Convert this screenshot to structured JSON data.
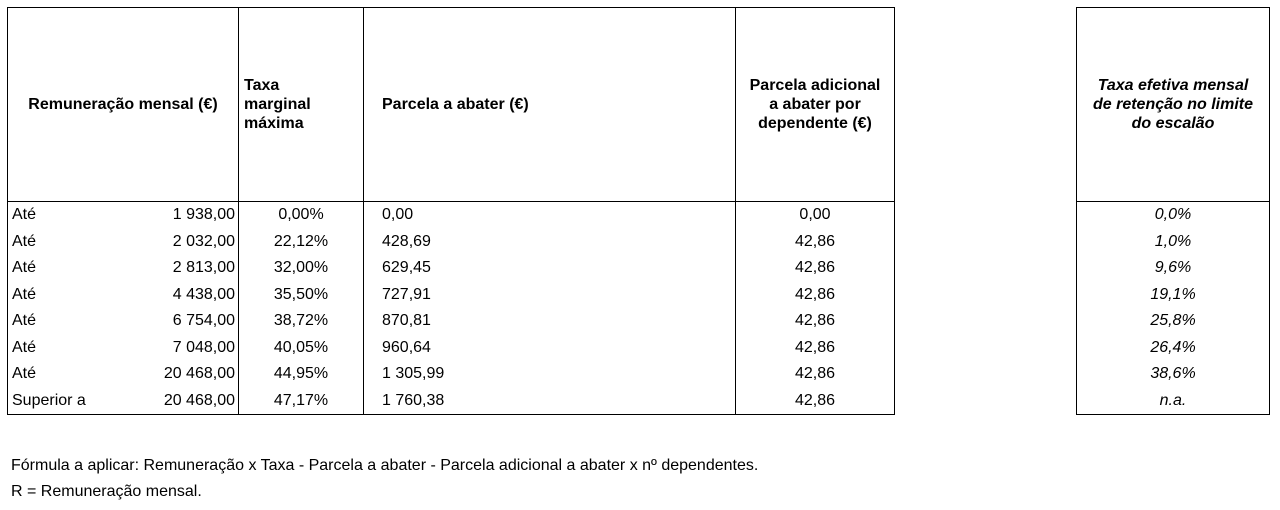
{
  "table": {
    "headers": {
      "remuneracao": "Remuneração mensal (€)",
      "taxa": "Taxa marginal máxima",
      "parcela": "Parcela a abater (€)",
      "adicional": "Parcela adicional a abater por dependente (€)",
      "efetiva": "Taxa efetiva mensal de retenção no limite do escalão"
    },
    "rows": [
      {
        "label": "Até",
        "amount": "1 938,00",
        "rate": "0,00%",
        "parcela": "0,00",
        "adicional": "0,00",
        "efetiva": "0,0%"
      },
      {
        "label": "Até",
        "amount": "2 032,00",
        "rate": "22,12%",
        "parcela": "428,69",
        "adicional": "42,86",
        "efetiva": "1,0%"
      },
      {
        "label": "Até",
        "amount": "2 813,00",
        "rate": "32,00%",
        "parcela": "629,45",
        "adicional": "42,86",
        "efetiva": "9,6%"
      },
      {
        "label": "Até",
        "amount": "4 438,00",
        "rate": "35,50%",
        "parcela": "727,91",
        "adicional": "42,86",
        "efetiva": "19,1%"
      },
      {
        "label": "Até",
        "amount": "6 754,00",
        "rate": "38,72%",
        "parcela": "870,81",
        "adicional": "42,86",
        "efetiva": "25,8%"
      },
      {
        "label": "Até",
        "amount": "7 048,00",
        "rate": "40,05%",
        "parcela": "960,64",
        "adicional": "42,86",
        "efetiva": "26,4%"
      },
      {
        "label": "Até",
        "amount": "20 468,00",
        "rate": "44,95%",
        "parcela": "1 305,99",
        "adicional": "42,86",
        "efetiva": "38,6%"
      },
      {
        "label": "Superior a",
        "amount": "20 468,00",
        "rate": "47,17%",
        "parcela": "1 760,38",
        "adicional": "42,86",
        "efetiva": "n.a."
      }
    ]
  },
  "notes": {
    "formula": "Fórmula a aplicar: Remuneração x Taxa - Parcela a abater - Parcela adicional a abater x nº dependentes.",
    "legend": "R = Remuneração mensal."
  }
}
